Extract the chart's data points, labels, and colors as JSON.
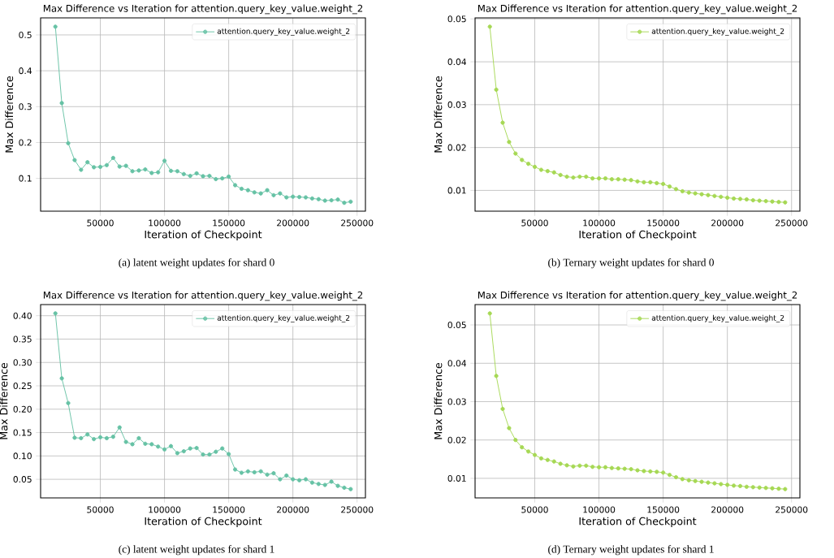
{
  "chart_data": [
    {
      "type": "line",
      "title": "Max Difference vs Iteration for attention.query_key_value.weight_2",
      "xlabel": "Iteration of Checkpoint",
      "ylabel": "Max Difference",
      "annotations": [
        "(a) latent weight updates for shard 0"
      ],
      "grid": true,
      "legend": "top right",
      "marker": "circle",
      "line_style": "solid",
      "xlim": [
        3500,
        256500
      ],
      "xticks": [
        50000,
        100000,
        150000,
        200000,
        250000
      ],
      "ylim": [
        0.0085,
        0.5475
      ],
      "yticks": [
        0.1,
        0.2,
        0.3,
        0.4,
        0.5
      ],
      "x": [
        15000,
        20000,
        25000,
        30000,
        35000,
        40000,
        45000,
        50000,
        55000,
        60000,
        65000,
        70000,
        75000,
        80000,
        85000,
        90000,
        95000,
        100000,
        105000,
        110000,
        115000,
        120000,
        125000,
        130000,
        135000,
        140000,
        145000,
        150000,
        155000,
        160000,
        165000,
        170000,
        175000,
        180000,
        185000,
        190000,
        195000,
        200000,
        205000,
        210000,
        215000,
        220000,
        225000,
        230000,
        235000,
        240000,
        245000
      ],
      "series": [
        {
          "name": "attention.query_key_value.weight_2",
          "color": "#66c2a5",
          "values": [
            0.523,
            0.31,
            0.198,
            0.151,
            0.124,
            0.145,
            0.131,
            0.132,
            0.137,
            0.157,
            0.133,
            0.135,
            0.12,
            0.122,
            0.125,
            0.115,
            0.117,
            0.149,
            0.121,
            0.12,
            0.112,
            0.107,
            0.114,
            0.106,
            0.107,
            0.098,
            0.1,
            0.105,
            0.081,
            0.071,
            0.067,
            0.061,
            0.058,
            0.067,
            0.053,
            0.058,
            0.047,
            0.049,
            0.048,
            0.047,
            0.044,
            0.042,
            0.038,
            0.039,
            0.041,
            0.032,
            0.035
          ]
        }
      ]
    },
    {
      "type": "line",
      "title": "Max Difference vs Iteration for attention.query_key_value.weight_2",
      "xlabel": "Iteration of Checkpoint",
      "ylabel": "Max Difference",
      "annotations": [
        "(b) Ternary weight updates for shard 0"
      ],
      "grid": true,
      "legend": "top right",
      "marker": "circle",
      "line_style": "solid",
      "xlim": [
        3500,
        256500
      ],
      "xticks": [
        50000,
        100000,
        150000,
        200000,
        250000
      ],
      "ylim": [
        0.00515,
        0.05025
      ],
      "yticks": [
        0.01,
        0.02,
        0.03,
        0.04,
        0.05
      ],
      "x": [
        15000,
        20000,
        25000,
        30000,
        35000,
        40000,
        45000,
        50000,
        55000,
        60000,
        65000,
        70000,
        75000,
        80000,
        85000,
        90000,
        95000,
        100000,
        105000,
        110000,
        115000,
        120000,
        125000,
        130000,
        135000,
        140000,
        145000,
        150000,
        155000,
        160000,
        165000,
        170000,
        175000,
        180000,
        185000,
        190000,
        195000,
        200000,
        205000,
        210000,
        215000,
        220000,
        225000,
        230000,
        235000,
        240000,
        245000
      ],
      "series": [
        {
          "name": "attention.query_key_value.weight_2",
          "color": "#a6d854",
          "values": [
            0.0482,
            0.0335,
            0.0258,
            0.0213,
            0.0186,
            0.0171,
            0.0162,
            0.0155,
            0.0148,
            0.0145,
            0.0142,
            0.0136,
            0.0132,
            0.013,
            0.0132,
            0.0132,
            0.0128,
            0.0128,
            0.0128,
            0.0126,
            0.0126,
            0.0125,
            0.0124,
            0.0121,
            0.0119,
            0.0119,
            0.0117,
            0.0115,
            0.0109,
            0.0103,
            0.0098,
            0.0095,
            0.0093,
            0.0091,
            0.0089,
            0.0087,
            0.0085,
            0.0083,
            0.0081,
            0.008,
            0.0079,
            0.0077,
            0.0076,
            0.0075,
            0.0074,
            0.0073,
            0.0072
          ]
        }
      ]
    },
    {
      "type": "line",
      "title": "Max Difference vs Iteration for attention.query_key_value.weight_2",
      "xlabel": "Iteration of Checkpoint",
      "ylabel": "Max Difference",
      "annotations": [
        "(c) latent weight updates for shard 1"
      ],
      "grid": true,
      "legend": "top right",
      "marker": "circle",
      "line_style": "solid",
      "xlim": [
        3500,
        256500
      ],
      "xticks": [
        50000,
        100000,
        150000,
        200000,
        250000
      ],
      "ylim": [
        0.0102,
        0.4238
      ],
      "yticks": [
        0.05,
        {
          "value": 0.1,
          "label": "0.10"
        },
        0.15,
        {
          "value": 0.2,
          "label": "0.20"
        },
        0.25,
        {
          "value": 0.3,
          "label": "0.30"
        },
        0.35,
        {
          "value": 0.4,
          "label": "0.40"
        }
      ],
      "x": [
        15000,
        20000,
        25000,
        30000,
        35000,
        40000,
        45000,
        50000,
        55000,
        60000,
        65000,
        70000,
        75000,
        80000,
        85000,
        90000,
        95000,
        100000,
        105000,
        110000,
        115000,
        120000,
        125000,
        130000,
        135000,
        140000,
        145000,
        150000,
        155000,
        160000,
        165000,
        170000,
        175000,
        180000,
        185000,
        190000,
        195000,
        200000,
        205000,
        210000,
        215000,
        220000,
        225000,
        230000,
        235000,
        240000,
        245000
      ],
      "series": [
        {
          "name": "attention.query_key_value.weight_2",
          "color": "#66c2a5",
          "values": [
            0.405,
            0.266,
            0.213,
            0.139,
            0.138,
            0.146,
            0.136,
            0.14,
            0.138,
            0.141,
            0.161,
            0.13,
            0.125,
            0.138,
            0.126,
            0.125,
            0.12,
            0.114,
            0.121,
            0.106,
            0.11,
            0.116,
            0.117,
            0.103,
            0.103,
            0.109,
            0.116,
            0.104,
            0.071,
            0.064,
            0.067,
            0.065,
            0.067,
            0.06,
            0.063,
            0.05,
            0.058,
            0.05,
            0.048,
            0.05,
            0.043,
            0.04,
            0.038,
            0.045,
            0.036,
            0.032,
            0.029
          ]
        }
      ]
    },
    {
      "type": "line",
      "title": "Max Difference vs Iteration for attention.query_key_value.weight_2",
      "xlabel": "Iteration of Checkpoint",
      "ylabel": "Max Difference",
      "annotations": [
        "(d) Ternary weight updates for shard 1"
      ],
      "grid": true,
      "legend": "top right",
      "marker": "circle",
      "line_style": "solid",
      "xlim": [
        3500,
        256500
      ],
      "xticks": [
        50000,
        100000,
        150000,
        200000,
        250000
      ],
      "ylim": [
        0.0049,
        0.0553
      ],
      "yticks": [
        0.01,
        0.02,
        0.03,
        0.04,
        0.05
      ],
      "x": [
        15000,
        20000,
        25000,
        30000,
        35000,
        40000,
        45000,
        50000,
        55000,
        60000,
        65000,
        70000,
        75000,
        80000,
        85000,
        90000,
        95000,
        100000,
        105000,
        110000,
        115000,
        120000,
        125000,
        130000,
        135000,
        140000,
        145000,
        150000,
        155000,
        160000,
        165000,
        170000,
        175000,
        180000,
        185000,
        190000,
        195000,
        200000,
        205000,
        210000,
        215000,
        220000,
        225000,
        230000,
        235000,
        240000,
        245000
      ],
      "series": [
        {
          "name": "attention.query_key_value.weight_2",
          "color": "#a6d854",
          "values": [
            0.053,
            0.0367,
            0.0281,
            0.0231,
            0.02,
            0.0181,
            0.017,
            0.0161,
            0.0152,
            0.0148,
            0.0144,
            0.0138,
            0.0134,
            0.0131,
            0.0133,
            0.0133,
            0.013,
            0.0129,
            0.0129,
            0.0127,
            0.0126,
            0.0125,
            0.0124,
            0.0121,
            0.0119,
            0.0118,
            0.0117,
            0.0115,
            0.0109,
            0.0103,
            0.0098,
            0.0095,
            0.0093,
            0.0091,
            0.0089,
            0.0087,
            0.0085,
            0.0083,
            0.0081,
            0.008,
            0.0078,
            0.0077,
            0.0076,
            0.0075,
            0.0074,
            0.0073,
            0.0072
          ]
        }
      ]
    }
  ]
}
